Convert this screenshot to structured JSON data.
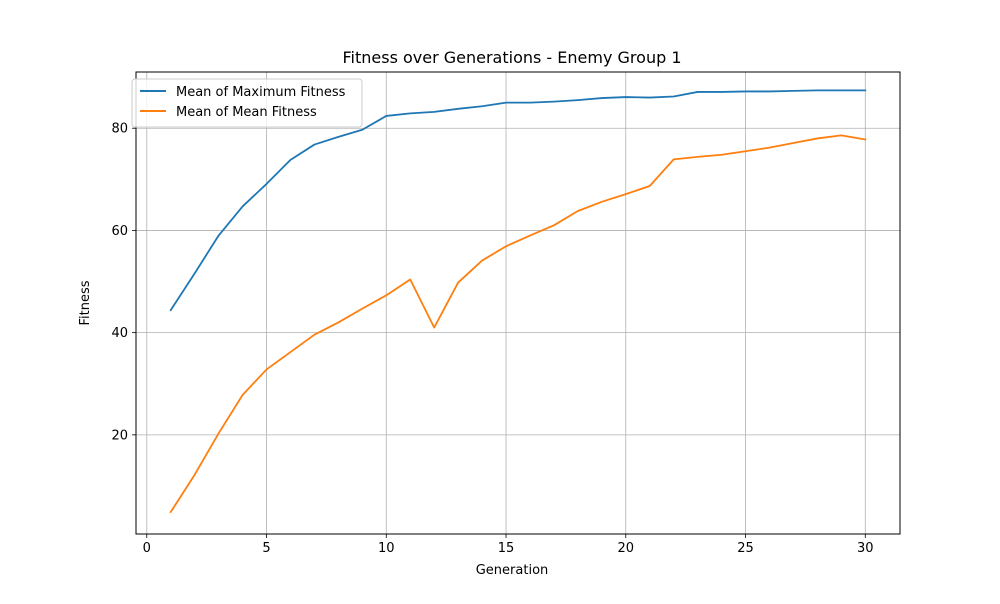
{
  "chart_data": {
    "type": "line",
    "title": "Fitness over Generations - Enemy Group 1",
    "xlabel": "Generation",
    "ylabel": "Fitness",
    "xlim": [
      -0.45,
      31.45
    ],
    "ylim": [
      0.6,
      91.0
    ],
    "xticks": [
      0,
      5,
      10,
      15,
      20,
      25,
      30
    ],
    "yticks": [
      20,
      40,
      60,
      80
    ],
    "grid": true,
    "legend_position": "top-left",
    "x": [
      1,
      2,
      3,
      4,
      5,
      6,
      7,
      8,
      9,
      10,
      11,
      12,
      13,
      14,
      15,
      16,
      17,
      18,
      19,
      20,
      21,
      22,
      23,
      24,
      25,
      26,
      27,
      28,
      29,
      30
    ],
    "series": [
      {
        "name": "Mean of Maximum Fitness",
        "color": "#1f77b4",
        "values": [
          44.4,
          51.6,
          59.0,
          64.7,
          69.1,
          73.8,
          76.8,
          78.3,
          79.7,
          82.4,
          82.9,
          83.2,
          83.8,
          84.3,
          85.0,
          85.0,
          85.2,
          85.5,
          85.9,
          86.1,
          86.0,
          86.2,
          87.1,
          87.1,
          87.2,
          87.2,
          87.3,
          87.4,
          87.4,
          87.4
        ]
      },
      {
        "name": "Mean of Mean Fitness",
        "color": "#ff7f0e",
        "values": [
          4.9,
          12.2,
          20.3,
          27.8,
          32.8,
          36.2,
          39.6,
          42.0,
          44.7,
          47.3,
          50.4,
          41.0,
          49.8,
          54.1,
          56.9,
          59.0,
          61.0,
          63.8,
          65.6,
          67.1,
          68.7,
          73.9,
          74.4,
          74.8,
          75.5,
          76.2,
          77.1,
          78.0,
          78.6,
          77.8
        ]
      }
    ]
  }
}
